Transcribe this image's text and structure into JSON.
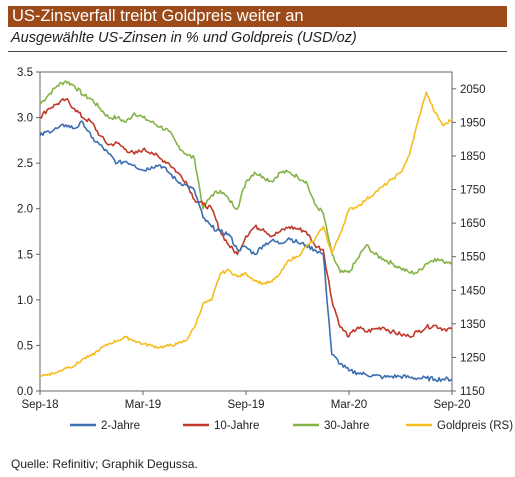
{
  "header": {
    "title": "US-Zinsverfall treibt Goldpreis weiter an",
    "subtitle": "Ausgewählte US-Zinsen in % und Goldpreis (USD/oz)"
  },
  "footer": {
    "source": "Quelle: Refinitiv; Graphik Degussa."
  },
  "chart_data": {
    "type": "line",
    "title": "US-Zinsverfall treibt Goldpreis weiter an",
    "subtitle": "Ausgewählte US-Zinsen in % und Goldpreis (USD/oz)",
    "x_ticks": [
      "Sep-18",
      "Mar-19",
      "Sep-19",
      "Mar-20",
      "Sep-20"
    ],
    "y_left": {
      "min": 0,
      "max": 3.5,
      "ticks": [
        "0.0",
        "0.5",
        "1.0",
        "1.5",
        "2.0",
        "2.5",
        "3.0",
        "3.5"
      ]
    },
    "y_right": {
      "min": 1150,
      "max": 2100,
      "ticks": [
        "1150",
        "1250",
        "1350",
        "1450",
        "1550",
        "1650",
        "1750",
        "1850",
        "1950",
        "2050"
      ]
    },
    "legend_position": "bottom",
    "grid": false,
    "series": [
      {
        "name": "2-Jahre",
        "axis": "left",
        "color": "#3c6fb0",
        "x": [
          0,
          0.5,
          1,
          1.5,
          2,
          2.5,
          3,
          3.5,
          4,
          4.5,
          5,
          5.5,
          6,
          6.5,
          7,
          7.5,
          8,
          8.5,
          9,
          9.5,
          10,
          10.5,
          11,
          11.5,
          12,
          12.5,
          13,
          13.5,
          14,
          14.5,
          15,
          15.5,
          16,
          16.5,
          17,
          17.5,
          18,
          18.5,
          19,
          19.5,
          20,
          20.5,
          21,
          21.5,
          22,
          22.5,
          23,
          23.5,
          24
        ],
        "values": [
          2.8,
          2.85,
          2.88,
          2.92,
          2.88,
          2.95,
          2.78,
          2.7,
          2.6,
          2.5,
          2.52,
          2.48,
          2.42,
          2.46,
          2.48,
          2.4,
          2.3,
          2.26,
          2.2,
          1.9,
          1.8,
          1.75,
          1.72,
          1.55,
          1.58,
          1.5,
          1.6,
          1.65,
          1.62,
          1.68,
          1.63,
          1.6,
          1.55,
          1.5,
          0.4,
          0.3,
          0.22,
          0.2,
          0.18,
          0.17,
          0.15,
          0.16,
          0.16,
          0.15,
          0.14,
          0.14,
          0.13,
          0.13,
          0.13
        ]
      },
      {
        "name": "10-Jahre",
        "axis": "left",
        "color": "#c0392b",
        "x": [
          0,
          0.5,
          1,
          1.5,
          2,
          2.5,
          3,
          3.5,
          4,
          4.5,
          5,
          5.5,
          6,
          6.5,
          7,
          7.5,
          8,
          8.5,
          9,
          9.5,
          10,
          10.5,
          11,
          11.5,
          12,
          12.5,
          13,
          13.5,
          14,
          14.5,
          15,
          15.5,
          16,
          16.5,
          17,
          17.5,
          18,
          18.5,
          19,
          19.5,
          20,
          20.5,
          21,
          21.5,
          22,
          22.5,
          23,
          23.5,
          24
        ],
        "values": [
          3.0,
          3.1,
          3.15,
          3.2,
          3.1,
          3.0,
          2.95,
          2.8,
          2.7,
          2.72,
          2.65,
          2.6,
          2.65,
          2.62,
          2.55,
          2.5,
          2.4,
          2.3,
          2.1,
          2.05,
          2.0,
          1.75,
          1.6,
          1.5,
          1.7,
          1.8,
          1.78,
          1.7,
          1.75,
          1.8,
          1.78,
          1.75,
          1.6,
          1.55,
          1.0,
          0.7,
          0.6,
          0.7,
          0.65,
          0.68,
          0.7,
          0.65,
          0.62,
          0.6,
          0.65,
          0.7,
          0.72,
          0.68,
          0.68
        ]
      },
      {
        "name": "30-Jahre",
        "axis": "left",
        "color": "#86b348",
        "x": [
          0,
          0.5,
          1,
          1.5,
          2,
          2.5,
          3,
          3.5,
          4,
          4.5,
          5,
          5.5,
          6,
          6.5,
          7,
          7.5,
          8,
          8.5,
          9,
          9.5,
          10,
          10.5,
          11,
          11.5,
          12,
          12.5,
          13,
          13.5,
          14,
          14.5,
          15,
          15.5,
          16,
          16.5,
          17,
          17.5,
          18,
          18.5,
          19,
          19.5,
          20,
          20.5,
          21,
          21.5,
          22,
          22.5,
          23,
          23.5,
          24
        ],
        "values": [
          3.15,
          3.25,
          3.35,
          3.4,
          3.35,
          3.25,
          3.2,
          3.1,
          3.0,
          3.0,
          2.95,
          3.05,
          3.0,
          2.95,
          2.9,
          2.85,
          2.7,
          2.6,
          2.55,
          2.0,
          2.15,
          2.2,
          2.1,
          2.0,
          2.3,
          2.4,
          2.35,
          2.3,
          2.4,
          2.4,
          2.35,
          2.3,
          2.05,
          1.95,
          1.5,
          1.3,
          1.3,
          1.45,
          1.6,
          1.5,
          1.45,
          1.4,
          1.35,
          1.3,
          1.3,
          1.4,
          1.45,
          1.42,
          1.42
        ]
      },
      {
        "name": "Goldpreis (RS)",
        "axis": "right",
        "color": "#f5bd1f",
        "x": [
          0,
          0.5,
          1,
          1.5,
          2,
          2.5,
          3,
          3.5,
          4,
          4.5,
          5,
          5.5,
          6,
          6.5,
          7,
          7.5,
          8,
          8.5,
          9,
          9.5,
          10,
          10.5,
          11,
          11.5,
          12,
          12.5,
          13,
          13.5,
          14,
          14.5,
          15,
          15.5,
          16,
          16.5,
          17,
          17.5,
          18,
          18.5,
          19,
          19.5,
          20,
          20.5,
          21,
          21.5,
          22,
          22.5,
          23,
          23.5,
          24
        ],
        "values": [
          1195,
          1200,
          1205,
          1220,
          1225,
          1245,
          1255,
          1275,
          1290,
          1300,
          1310,
          1300,
          1290,
          1285,
          1280,
          1285,
          1290,
          1300,
          1340,
          1410,
          1420,
          1500,
          1510,
          1490,
          1500,
          1480,
          1470,
          1475,
          1500,
          1540,
          1550,
          1580,
          1600,
          1640,
          1560,
          1620,
          1690,
          1700,
          1720,
          1740,
          1760,
          1780,
          1800,
          1850,
          1950,
          2040,
          1980,
          1940,
          1960
        ]
      }
    ]
  }
}
